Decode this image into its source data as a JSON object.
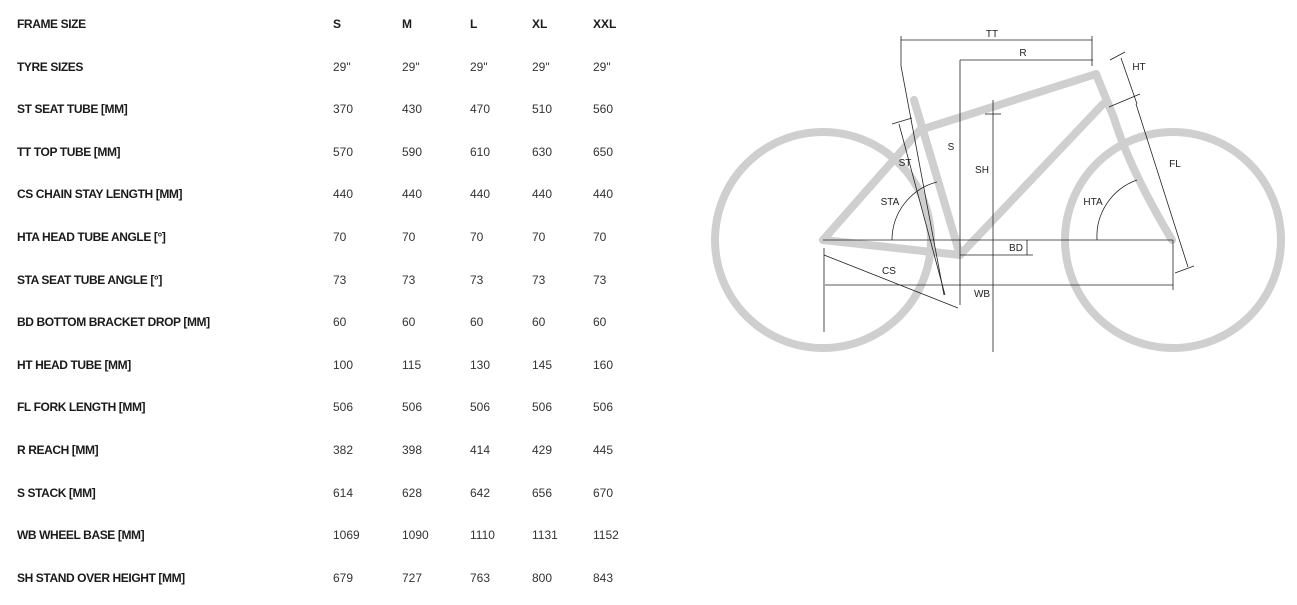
{
  "table": {
    "header": {
      "label": "FRAME SIZE",
      "sizes": [
        "S",
        "M",
        "L",
        "XL",
        "XXL"
      ]
    },
    "rows": [
      {
        "label": "TYRE SIZES",
        "values": [
          "29\"",
          "29\"",
          "29\"",
          "29\"",
          "29\""
        ]
      },
      {
        "label": "ST SEAT TUBE [MM]",
        "values": [
          "370",
          "430",
          "470",
          "510",
          "560"
        ]
      },
      {
        "label": "TT TOP TUBE [MM]",
        "values": [
          "570",
          "590",
          "610",
          "630",
          "650"
        ]
      },
      {
        "label": "CS CHAIN STAY LENGTH [MM]",
        "values": [
          "440",
          "440",
          "440",
          "440",
          "440"
        ]
      },
      {
        "label": "HTA HEAD TUBE ANGLE [°]",
        "values": [
          "70",
          "70",
          "70",
          "70",
          "70"
        ]
      },
      {
        "label": "STA SEAT TUBE ANGLE [°]",
        "values": [
          "73",
          "73",
          "73",
          "73",
          "73"
        ]
      },
      {
        "label": "BD BOTTOM BRACKET DROP [MM]",
        "values": [
          "60",
          "60",
          "60",
          "60",
          "60"
        ]
      },
      {
        "label": "HT HEAD TUBE [MM]",
        "values": [
          "100",
          "115",
          "130",
          "145",
          "160"
        ]
      },
      {
        "label": "FL FORK LENGTH [MM]",
        "values": [
          "506",
          "506",
          "506",
          "506",
          "506"
        ]
      },
      {
        "label": "R REACH [MM]",
        "values": [
          "382",
          "398",
          "414",
          "429",
          "445"
        ]
      },
      {
        "label": "S STACK [MM]",
        "values": [
          "614",
          "628",
          "642",
          "656",
          "670"
        ]
      },
      {
        "label": "WB WHEEL BASE [MM]",
        "values": [
          "1069",
          "1090",
          "1110",
          "1131",
          "1152"
        ]
      },
      {
        "label": "SH STAND OVER HEIGHT [MM]",
        "values": [
          "679",
          "727",
          "763",
          "800",
          "843"
        ]
      }
    ]
  },
  "diagram": {
    "labels": {
      "tt": "TT",
      "r": "R",
      "ht": "HT",
      "s": "S",
      "st": "ST",
      "sh": "SH",
      "fl": "FL",
      "sta": "STA",
      "hta": "HTA",
      "bd": "BD",
      "cs": "CS",
      "wb": "WB"
    },
    "frame_color": "#cfcfcf",
    "line_color": "#222222"
  }
}
